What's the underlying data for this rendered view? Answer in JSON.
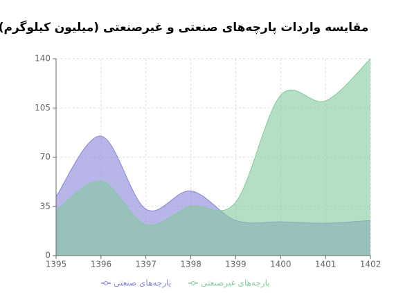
{
  "chart_data": {
    "type": "area",
    "title": "مقایسه واردات پارچه‌های صنعتی و غیرصنعتی (میلیون کیلوگرم)",
    "categories": [
      "1395",
      "1396",
      "1397",
      "1398",
      "1399",
      "1400",
      "1401",
      "1402"
    ],
    "series": [
      {
        "name": "پارچه‌های صنعتی",
        "color": "#8884d8",
        "values": [
          42,
          85,
          33,
          46,
          25,
          24,
          23,
          25
        ]
      },
      {
        "name": "پارچه‌های غیرصنعتی",
        "color": "#82ca9d",
        "values": [
          32,
          53,
          22,
          35,
          38,
          114,
          110,
          140
        ]
      }
    ],
    "ylim": [
      0,
      140
    ],
    "yticks": [
      0,
      35,
      70,
      105,
      140
    ],
    "grid": true
  }
}
